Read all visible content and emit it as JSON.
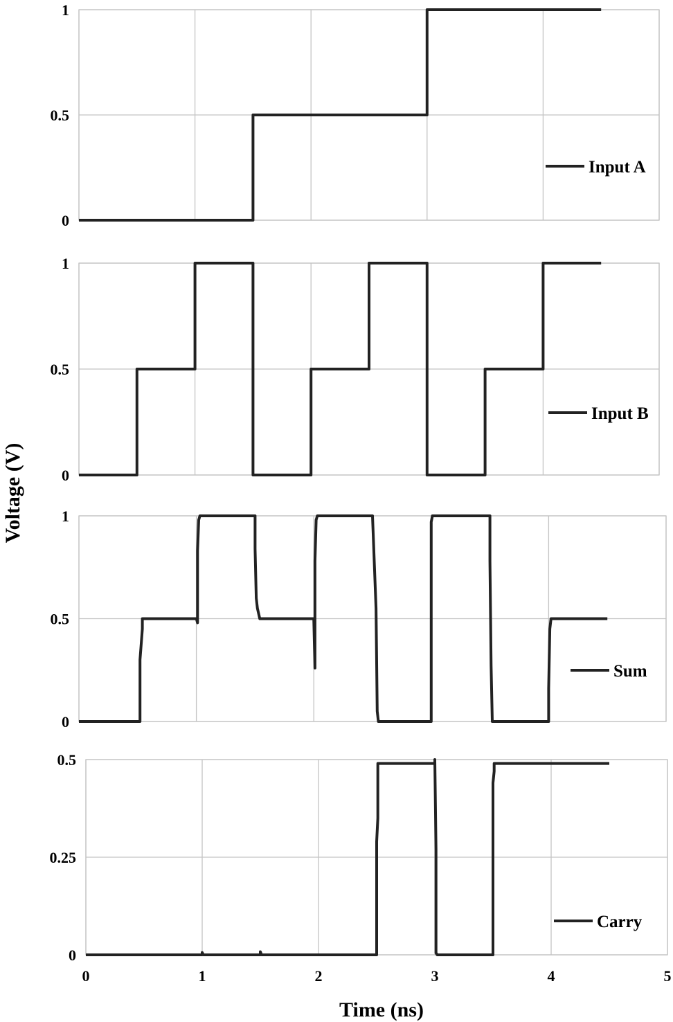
{
  "chart_data": [
    {
      "type": "line",
      "xlim": [
        0,
        5
      ],
      "x_ticks": [
        0,
        1,
        2,
        3,
        4,
        5
      ],
      "ylim": [
        0,
        1
      ],
      "y_ticks": [
        "0",
        "0.5",
        "1"
      ],
      "grid": true,
      "legend_position": "right",
      "series": [
        {
          "name": "Input A",
          "color": "#222222",
          "x": [
            0,
            1.5,
            1.5,
            3.0,
            3.0,
            4.5
          ],
          "y": [
            0,
            0,
            0.5,
            0.5,
            1,
            1
          ]
        }
      ]
    },
    {
      "type": "line",
      "xlim": [
        0,
        5
      ],
      "x_ticks": [
        0,
        1,
        2,
        3,
        4,
        5
      ],
      "ylim": [
        0,
        1
      ],
      "y_ticks": [
        "0",
        "0.5",
        "1"
      ],
      "grid": true,
      "legend_position": "right",
      "series": [
        {
          "name": "Input B",
          "color": "#222222",
          "x": [
            0,
            0.5,
            0.5,
            1.0,
            1.0,
            1.5,
            1.5,
            2.0,
            2.0,
            2.5,
            2.5,
            3.0,
            3.0,
            3.5,
            3.5,
            4.0,
            4.0,
            4.5
          ],
          "y": [
            0,
            0,
            0.5,
            0.5,
            1,
            1,
            0,
            0,
            0.5,
            0.5,
            1,
            1,
            0,
            0,
            0.5,
            0.5,
            1,
            1
          ]
        }
      ]
    },
    {
      "type": "line",
      "xlim": [
        0,
        5
      ],
      "x_ticks": [
        0,
        1,
        2,
        3,
        4,
        5
      ],
      "ylim": [
        0,
        1
      ],
      "y_ticks": [
        "0",
        "0.5",
        "1"
      ],
      "grid": true,
      "legend_position": "right",
      "series": [
        {
          "name": "Sum",
          "color": "#222222",
          "x": [
            0,
            0.52,
            0.52,
            0.54,
            0.54,
            1.0,
            1.01,
            1.01,
            1.02,
            1.03,
            1.5,
            1.5,
            1.51,
            1.52,
            1.54,
            2.0,
            2.01,
            2.01,
            2.02,
            2.03,
            2.5,
            2.51,
            2.53,
            2.54,
            2.55,
            2.56,
            3.0,
            3.0,
            3.01,
            3.02,
            3.5,
            3.5,
            3.51,
            3.52,
            4.0,
            4.0,
            4.01,
            4.02,
            4.05,
            4.5
          ],
          "y": [
            0,
            0,
            0.3,
            0.45,
            0.5,
            0.5,
            0.48,
            0.83,
            0.98,
            1,
            1,
            0.84,
            0.6,
            0.55,
            0.5,
            0.5,
            0.26,
            0.78,
            0.98,
            1,
            1,
            0.85,
            0.55,
            0.05,
            0,
            0,
            0,
            0.97,
            1,
            1,
            1,
            0.78,
            0.27,
            0,
            0,
            0.16,
            0.45,
            0.5,
            0.5,
            0.5
          ]
        }
      ]
    },
    {
      "type": "line",
      "xlim": [
        0,
        5
      ],
      "x_ticks": [
        "0",
        "1",
        "2",
        "3",
        "4",
        "5"
      ],
      "ylim": [
        0,
        0.5
      ],
      "y_ticks": [
        "0",
        "0.25",
        "0.5"
      ],
      "grid": true,
      "legend_position": "right",
      "xlabel": "Time (ns)",
      "series": [
        {
          "name": "Carry",
          "color": "#222222",
          "x": [
            0,
            1.0,
            1.0,
            1.01,
            1.5,
            1.5,
            1.51,
            2.5,
            2.5,
            2.51,
            2.51,
            2.52,
            3.0,
            3.0,
            3.01,
            3.01,
            3.02,
            3.5,
            3.5,
            3.51,
            3.51,
            3.52,
            4.5
          ],
          "y": [
            0,
            0,
            0.006,
            0,
            0,
            0.008,
            0,
            0,
            0.29,
            0.35,
            0.49,
            0.49,
            0.49,
            0.5,
            0.27,
            0.005,
            0,
            0,
            0.44,
            0.47,
            0.49,
            0.49,
            0.49
          ]
        }
      ]
    }
  ],
  "shared_ylabel": "Voltage (V)"
}
